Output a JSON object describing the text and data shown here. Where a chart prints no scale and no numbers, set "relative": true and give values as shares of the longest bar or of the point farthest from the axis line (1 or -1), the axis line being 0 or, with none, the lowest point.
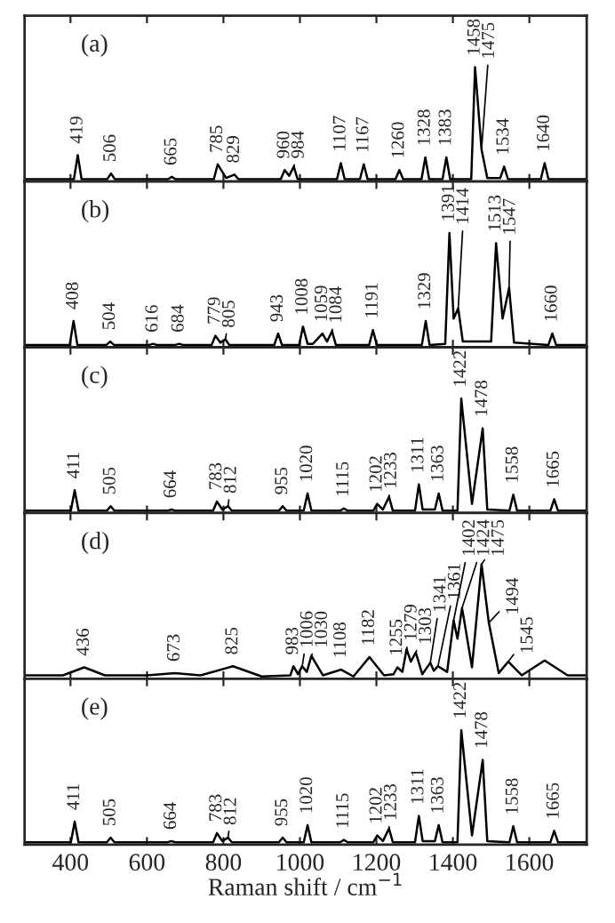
{
  "chart_data": [
    {
      "type": "line",
      "relative": true,
      "xlim": [
        280,
        1750
      ],
      "xticks": [
        400,
        600,
        800,
        1000,
        1200,
        1400,
        1600
      ],
      "tick_labels": false,
      "grid": false,
      "legend": false,
      "series": [
        {
          "color": "#000000",
          "x": [
            280,
            409,
            419,
            429,
            496,
            506,
            516,
            655,
            665,
            675,
            775,
            785,
            807,
            829,
            839,
            950,
            960,
            972,
            984,
            994,
            1097,
            1107,
            1117,
            1157,
            1167,
            1177,
            1250,
            1260,
            1270,
            1318,
            1328,
            1338,
            1373,
            1383,
            1393,
            1448,
            1458,
            1475,
            1490,
            1524,
            1534,
            1544,
            1630,
            1640,
            1650,
            1750
          ],
          "values": [
            0.02,
            0.02,
            0.23,
            0.02,
            0.02,
            0.07,
            0.02,
            0.02,
            0.04,
            0.02,
            0.02,
            0.15,
            0.03,
            0.06,
            0.02,
            0.02,
            0.1,
            0.05,
            0.13,
            0.02,
            0.02,
            0.16,
            0.02,
            0.02,
            0.15,
            0.02,
            0.02,
            0.1,
            0.02,
            0.02,
            0.21,
            0.02,
            0.02,
            0.21,
            0.02,
            0.02,
            1.0,
            0.28,
            0.03,
            0.03,
            0.13,
            0.02,
            0.02,
            0.16,
            0.02,
            0.02
          ]
        }
      ],
      "annotations": [
        "(a)",
        {
          "text": "419",
          "x": 419,
          "y": 0.23
        },
        {
          "text": "506",
          "x": 506,
          "y": 0.07
        },
        {
          "text": "665",
          "x": 665,
          "y": 0.04
        },
        {
          "text": "785",
          "x": 785,
          "y": 0.15
        },
        {
          "text": "829",
          "x": 829,
          "y": 0.06
        },
        {
          "text": "960",
          "x": 960,
          "y": 0.1
        },
        {
          "text": "984",
          "x": 984,
          "y": 0.13
        },
        {
          "text": "1107",
          "x": 1107,
          "y": 0.16
        },
        {
          "text": "1167",
          "x": 1167,
          "y": 0.15
        },
        {
          "text": "1260",
          "x": 1260,
          "y": 0.1
        },
        {
          "text": "1328",
          "x": 1328,
          "y": 0.21
        },
        {
          "text": "1383",
          "x": 1383,
          "y": 0.21
        },
        {
          "text": "1458",
          "x": 1458,
          "y": 1.0
        },
        {
          "text": "1475",
          "x": 1475,
          "y": 0.28
        },
        {
          "text": "1534",
          "x": 1534,
          "y": 0.13
        },
        {
          "text": "1640",
          "x": 1640,
          "y": 0.16
        }
      ]
    },
    {
      "type": "line",
      "relative": true,
      "xlim": [
        280,
        1750
      ],
      "xticks": [
        400,
        600,
        800,
        1000,
        1200,
        1400,
        1600
      ],
      "tick_labels": false,
      "grid": false,
      "legend": false,
      "series": [
        {
          "color": "#000000",
          "x": [
            280,
            398,
            408,
            418,
            494,
            504,
            514,
            606,
            616,
            626,
            674,
            684,
            694,
            769,
            779,
            792,
            805,
            815,
            933,
            943,
            953,
            998,
            1008,
            1020,
            1034,
            1059,
            1071,
            1084,
            1094,
            1181,
            1191,
            1201,
            1319,
            1329,
            1339,
            1380,
            1391,
            1402,
            1414,
            1426,
            1500,
            1513,
            1530,
            1547,
            1560,
            1650,
            1660,
            1670,
            1750
          ],
          "values": [
            0.02,
            0.02,
            0.23,
            0.02,
            0.02,
            0.05,
            0.02,
            0.02,
            0.03,
            0.02,
            0.02,
            0.03,
            0.02,
            0.02,
            0.1,
            0.04,
            0.07,
            0.02,
            0.02,
            0.12,
            0.02,
            0.02,
            0.18,
            0.03,
            0.03,
            0.12,
            0.05,
            0.14,
            0.02,
            0.02,
            0.15,
            0.02,
            0.02,
            0.23,
            0.02,
            0.03,
            1.0,
            0.25,
            0.34,
            0.05,
            0.05,
            0.91,
            0.25,
            0.52,
            0.04,
            0.02,
            0.12,
            0.02,
            0.02
          ]
        }
      ],
      "annotations": [
        "(b)",
        {
          "text": "408",
          "x": 408,
          "y": 0.23
        },
        {
          "text": "504",
          "x": 504,
          "y": 0.05
        },
        {
          "text": "616",
          "x": 616,
          "y": 0.03
        },
        {
          "text": "684",
          "x": 684,
          "y": 0.03
        },
        {
          "text": "779",
          "x": 779,
          "y": 0.1
        },
        {
          "text": "805",
          "x": 805,
          "y": 0.07
        },
        {
          "text": "943",
          "x": 943,
          "y": 0.12
        },
        {
          "text": "1008",
          "x": 1008,
          "y": 0.18
        },
        {
          "text": "1059",
          "x": 1059,
          "y": 0.12
        },
        {
          "text": "1084",
          "x": 1084,
          "y": 0.14
        },
        {
          "text": "1191",
          "x": 1191,
          "y": 0.15
        },
        {
          "text": "1329",
          "x": 1329,
          "y": 0.23
        },
        {
          "text": "1391",
          "x": 1391,
          "y": 1.0
        },
        {
          "text": "1414",
          "x": 1414,
          "y": 0.34
        },
        {
          "text": "1513",
          "x": 1513,
          "y": 0.91
        },
        {
          "text": "1547",
          "x": 1547,
          "y": 0.52
        },
        {
          "text": "1660",
          "x": 1660,
          "y": 0.12
        }
      ]
    },
    {
      "type": "line",
      "relative": true,
      "xlim": [
        280,
        1750
      ],
      "xticks": [
        400,
        600,
        800,
        1000,
        1200,
        1400,
        1600
      ],
      "tick_labels": false,
      "grid": false,
      "legend": false,
      "series": [
        {
          "color": "#000000",
          "x": [
            280,
            401,
            411,
            421,
            495,
            505,
            515,
            654,
            664,
            674,
            773,
            783,
            797,
            812,
            822,
            945,
            955,
            965,
            1010,
            1020,
            1030,
            1105,
            1115,
            1125,
            1192,
            1202,
            1217,
            1233,
            1243,
            1301,
            1311,
            1321,
            1353,
            1363,
            1373,
            1412,
            1422,
            1450,
            1478,
            1490,
            1548,
            1558,
            1568,
            1655,
            1665,
            1675,
            1750
          ],
          "values": [
            0.02,
            0.02,
            0.2,
            0.02,
            0.02,
            0.06,
            0.02,
            0.02,
            0.03,
            0.02,
            0.02,
            0.1,
            0.03,
            0.06,
            0.02,
            0.02,
            0.06,
            0.02,
            0.02,
            0.17,
            0.02,
            0.02,
            0.04,
            0.02,
            0.02,
            0.08,
            0.03,
            0.14,
            0.02,
            0.02,
            0.25,
            0.03,
            0.03,
            0.17,
            0.02,
            0.02,
            1.0,
            0.08,
            0.74,
            0.03,
            0.02,
            0.16,
            0.02,
            0.02,
            0.12,
            0.02,
            0.02
          ]
        }
      ],
      "annotations": [
        "(c)",
        {
          "text": "411",
          "x": 411,
          "y": 0.2
        },
        {
          "text": "505",
          "x": 505,
          "y": 0.06
        },
        {
          "text": "664",
          "x": 664,
          "y": 0.03
        },
        {
          "text": "783",
          "x": 783,
          "y": 0.1
        },
        {
          "text": "812",
          "x": 812,
          "y": 0.06
        },
        {
          "text": "955",
          "x": 955,
          "y": 0.06
        },
        {
          "text": "1020",
          "x": 1020,
          "y": 0.17
        },
        {
          "text": "1115",
          "x": 1115,
          "y": 0.04
        },
        {
          "text": "1202",
          "x": 1202,
          "y": 0.08
        },
        {
          "text": "1233",
          "x": 1233,
          "y": 0.14
        },
        {
          "text": "1311",
          "x": 1311,
          "y": 0.25
        },
        {
          "text": "1363",
          "x": 1363,
          "y": 0.17
        },
        {
          "text": "1422",
          "x": 1422,
          "y": 1.0
        },
        {
          "text": "1478",
          "x": 1478,
          "y": 0.74
        },
        {
          "text": "1558",
          "x": 1558,
          "y": 0.16
        },
        {
          "text": "1665",
          "x": 1665,
          "y": 0.12
        }
      ]
    },
    {
      "type": "line",
      "relative": true,
      "xlim": [
        280,
        1750
      ],
      "xticks": [
        400,
        600,
        800,
        1000,
        1200,
        1400,
        1600
      ],
      "tick_labels": false,
      "grid": false,
      "legend": false,
      "series": [
        {
          "color": "#000000",
          "x": [
            280,
            380,
            436,
            490,
            600,
            673,
            740,
            825,
            900,
            975,
            983,
            995,
            1006,
            1018,
            1030,
            1060,
            1108,
            1140,
            1182,
            1220,
            1245,
            1255,
            1268,
            1279,
            1290,
            1303,
            1320,
            1341,
            1350,
            1361,
            1385,
            1402,
            1412,
            1424,
            1450,
            1475,
            1494,
            1520,
            1545,
            1580,
            1640,
            1700,
            1750
          ],
          "values": [
            0.03,
            0.03,
            0.1,
            0.03,
            0.03,
            0.05,
            0.03,
            0.11,
            0.02,
            0.03,
            0.11,
            0.04,
            0.11,
            0.06,
            0.2,
            0.03,
            0.08,
            0.02,
            0.19,
            0.03,
            0.04,
            0.1,
            0.06,
            0.26,
            0.15,
            0.23,
            0.04,
            0.14,
            0.07,
            0.11,
            0.06,
            0.51,
            0.35,
            0.62,
            0.1,
            1.0,
            0.49,
            0.05,
            0.15,
            0.03,
            0.16,
            0.03,
            0.03
          ]
        }
      ],
      "annotations": [
        "(d)",
        {
          "text": "436",
          "x": 436,
          "y": 0.1
        },
        {
          "text": "673",
          "x": 673,
          "y": 0.05
        },
        {
          "text": "825",
          "x": 825,
          "y": 0.11
        },
        {
          "text": "983",
          "x": 983,
          "y": 0.11
        },
        {
          "text": "1006",
          "x": 1006,
          "y": 0.11
        },
        {
          "text": "1030",
          "x": 1030,
          "y": 0.2
        },
        {
          "text": "1108",
          "x": 1108,
          "y": 0.08
        },
        {
          "text": "1182",
          "x": 1182,
          "y": 0.19
        },
        {
          "text": "1255",
          "x": 1255,
          "y": 0.1
        },
        {
          "text": "1279",
          "x": 1279,
          "y": 0.26
        },
        {
          "text": "1303",
          "x": 1303,
          "y": 0.23
        },
        {
          "text": "1341",
          "x": 1341,
          "y": 0.14
        },
        {
          "text": "1361",
          "x": 1361,
          "y": 0.11
        },
        {
          "text": "1402",
          "x": 1402,
          "y": 0.51
        },
        {
          "text": "1424",
          "x": 1424,
          "y": 0.62
        },
        {
          "text": "1475",
          "x": 1475,
          "y": 1.0
        },
        {
          "text": "1494",
          "x": 1494,
          "y": 0.49
        },
        {
          "text": "1545",
          "x": 1545,
          "y": 0.15
        }
      ]
    },
    {
      "type": "line",
      "relative": true,
      "xlim": [
        280,
        1750
      ],
      "xticks": [
        400,
        600,
        800,
        1000,
        1200,
        1400,
        1600
      ],
      "tick_labels": "x",
      "grid": false,
      "legend": false,
      "xlabel": "Raman shift / cm$^{−1}$",
      "series": [
        {
          "color": "#000000",
          "x": [
            280,
            401,
            411,
            421,
            495,
            505,
            515,
            654,
            664,
            674,
            773,
            783,
            797,
            812,
            822,
            945,
            955,
            965,
            1010,
            1020,
            1030,
            1105,
            1115,
            1125,
            1192,
            1202,
            1217,
            1233,
            1243,
            1301,
            1311,
            1321,
            1353,
            1363,
            1373,
            1412,
            1422,
            1450,
            1478,
            1490,
            1548,
            1558,
            1568,
            1655,
            1665,
            1675,
            1750
          ],
          "values": [
            0.02,
            0.02,
            0.2,
            0.02,
            0.02,
            0.06,
            0.02,
            0.02,
            0.03,
            0.02,
            0.02,
            0.1,
            0.03,
            0.06,
            0.02,
            0.02,
            0.06,
            0.02,
            0.02,
            0.17,
            0.02,
            0.02,
            0.04,
            0.02,
            0.02,
            0.08,
            0.03,
            0.14,
            0.02,
            0.02,
            0.25,
            0.03,
            0.03,
            0.17,
            0.02,
            0.02,
            1.0,
            0.08,
            0.74,
            0.03,
            0.02,
            0.16,
            0.02,
            0.02,
            0.12,
            0.02,
            0.02
          ]
        }
      ],
      "annotations": [
        "(e)",
        {
          "text": "411",
          "x": 411,
          "y": 0.2
        },
        {
          "text": "505",
          "x": 505,
          "y": 0.06
        },
        {
          "text": "664",
          "x": 664,
          "y": 0.03
        },
        {
          "text": "783",
          "x": 783,
          "y": 0.1
        },
        {
          "text": "812",
          "x": 812,
          "y": 0.06
        },
        {
          "text": "955",
          "x": 955,
          "y": 0.06
        },
        {
          "text": "1020",
          "x": 1020,
          "y": 0.17
        },
        {
          "text": "1115",
          "x": 1115,
          "y": 0.04
        },
        {
          "text": "1202",
          "x": 1202,
          "y": 0.08
        },
        {
          "text": "1233",
          "x": 1233,
          "y": 0.14
        },
        {
          "text": "1311",
          "x": 1311,
          "y": 0.25
        },
        {
          "text": "1363",
          "x": 1363,
          "y": 0.17
        },
        {
          "text": "1422",
          "x": 1422,
          "y": 1.0
        },
        {
          "text": "1478",
          "x": 1478,
          "y": 0.74
        },
        {
          "text": "1558",
          "x": 1558,
          "y": 0.16
        },
        {
          "text": "1665",
          "x": 1665,
          "y": 0.12
        }
      ]
    }
  ]
}
